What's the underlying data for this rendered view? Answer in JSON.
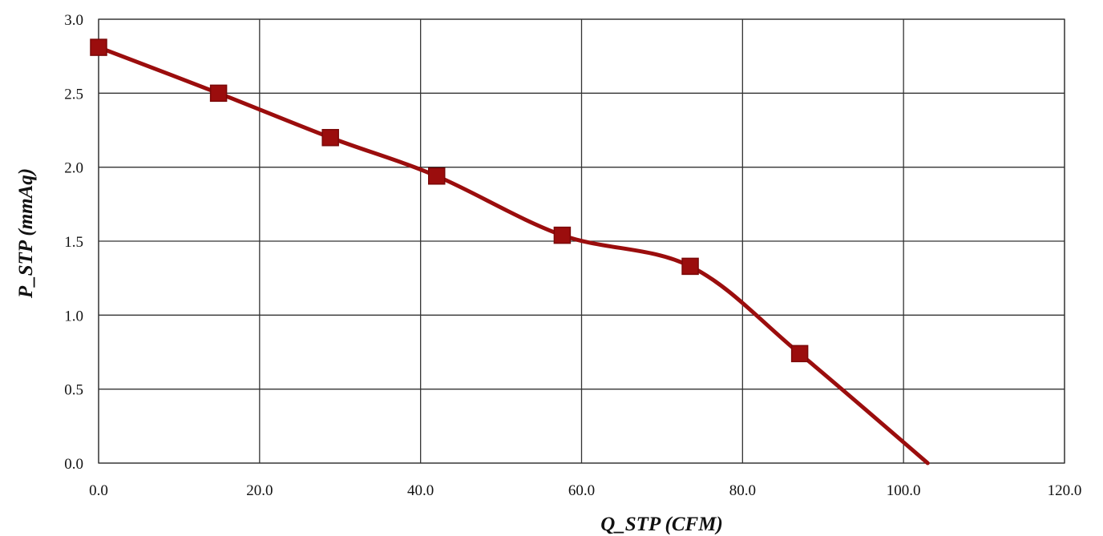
{
  "chart_data": {
    "type": "line",
    "title": "",
    "xlabel": "Q_STP (CFM)",
    "ylabel": "P_STP (mmAq)",
    "xlim": [
      0,
      120
    ],
    "ylim": [
      0,
      3
    ],
    "x_ticks": [
      "0.0",
      "20.0",
      "40.0",
      "60.0",
      "80.0",
      "100.0",
      "120.0"
    ],
    "y_ticks": [
      "0.0",
      "0.5",
      "1.0",
      "1.5",
      "2.0",
      "2.5",
      "3.0"
    ],
    "grid": true,
    "legend": "none",
    "series": [
      {
        "color": "#9b0d0d",
        "marker": "square",
        "smooth": true,
        "points": [
          {
            "x": 0.0,
            "y": 2.81
          },
          {
            "x": 14.9,
            "y": 2.5
          },
          {
            "x": 28.8,
            "y": 2.2
          },
          {
            "x": 42.0,
            "y": 1.94
          },
          {
            "x": 57.6,
            "y": 1.54
          },
          {
            "x": 73.5,
            "y": 1.33
          },
          {
            "x": 87.1,
            "y": 0.74
          }
        ],
        "line_end": {
          "x": 103.0,
          "y": 0.0
        }
      }
    ]
  }
}
